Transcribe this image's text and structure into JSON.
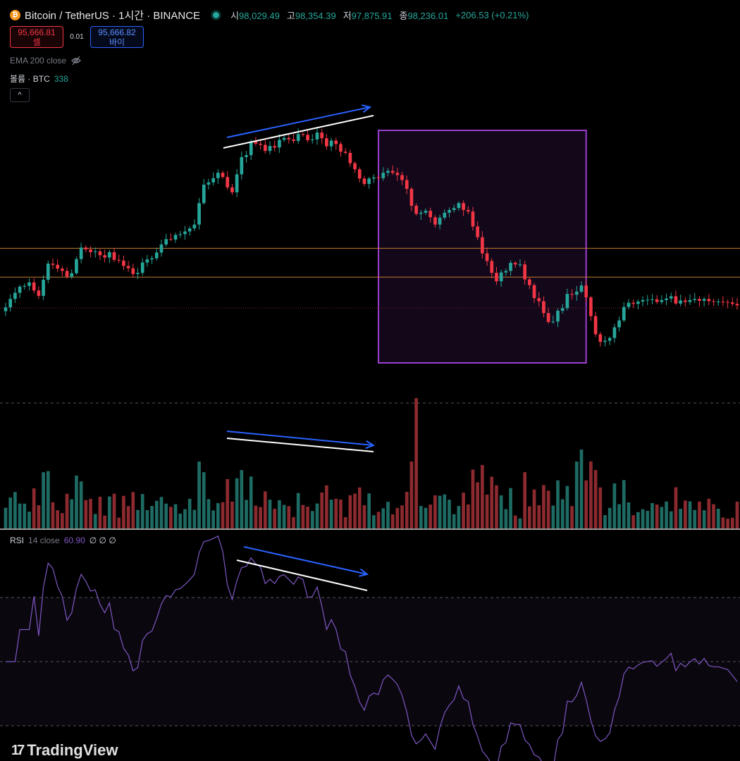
{
  "header": {
    "coin_glyph": "₿",
    "symbol": "Bitcoin / TetherUS · 1시간 · BINANCE",
    "ohlc": [
      {
        "k": "시",
        "v": "98,029.49"
      },
      {
        "k": "고",
        "v": "98,354.39"
      },
      {
        "k": "저",
        "v": "97,875.91"
      },
      {
        "k": "종",
        "v": "98,236.01"
      }
    ],
    "change": "+206.53 (+0.21%)"
  },
  "trade": {
    "sell_price": "95,666.81",
    "sell_label": "셀",
    "spread": "0.01",
    "buy_price": "95,666.82",
    "buy_label": "바이"
  },
  "indicators": {
    "ema_label": "EMA 200 close",
    "ema_icon": "eye-off-icon",
    "volume_label": "볼륨 · BTC",
    "volume_value": "338",
    "collapse_glyph": "^"
  },
  "rsi": {
    "label": "RSI",
    "params": "14 close",
    "value": "60.90",
    "extra": "∅ ∅ ∅"
  },
  "brand": "TradingView",
  "colors": {
    "up": "#26a69a",
    "down": "#f23645",
    "rsi_line": "#7e57c2",
    "box_border": "#9c3fd0",
    "level": "#c77b30",
    "arrow": "#2962ff"
  },
  "chart_data": {
    "type": "candlestick",
    "candles_close": [
      95340,
      95560,
      95720,
      95880,
      95900,
      95990,
      95780,
      95640,
      96060,
      96480,
      96450,
      96350,
      96290,
      96140,
      96230,
      96600,
      96900,
      96850,
      96780,
      96800,
      96700,
      96640,
      96780,
      96580,
      96560,
      96420,
      96360,
      96210,
      96240,
      96510,
      96590,
      96620,
      96770,
      96980,
      97120,
      97110,
      97230,
      97250,
      97320,
      97400,
      97500,
      98060,
      98540,
      98600,
      98710,
      98850,
      98740,
      98470,
      98340,
      98810,
      99260,
      99310,
      99670,
      99610,
      99580,
      99420,
      99550,
      99510,
      99710,
      99760,
      99720,
      99680,
      99860,
      99840,
      99700,
      99720,
      99900,
      99750,
      99540,
      99690,
      99600,
      99400,
      99370,
      99100,
      98940,
      98700,
      98560,
      98700,
      98730,
      98710,
      98850,
      98900,
      98850,
      98790,
      98660,
      98430,
      97990,
      97780,
      97810,
      97860,
      97690,
      97500,
      97680,
      97810,
      97880,
      97930,
      98060,
      97880,
      97840,
      97450,
      97170,
      96750,
      96550,
      96240,
      96020,
      96250,
      96290,
      96500,
      96460,
      96460,
      96070,
      95920,
      95580,
      95500,
      95190,
      94960,
      94970,
      95250,
      95320,
      95690,
      95670,
      95750,
      95910,
      95600,
      95110,
      94640,
      94440,
      94470,
      94540,
      94820,
      95000,
      95350,
      95460,
      95430,
      95490,
      95530,
      95540,
      95550,
      95480,
      95530,
      95570,
      95630,
      95440,
      95520,
      95480,
      95530,
      95560,
      95510,
      95560,
      95500,
      95490,
      95490,
      95480,
      95470,
      95430,
      95390
    ],
    "levels": [
      96880,
      96130
    ],
    "rsi_levels": [
      70,
      50,
      30
    ],
    "annotations": [
      "price higher-high",
      "volume lower-high",
      "rsi lower-high",
      "box highlighted drop"
    ]
  }
}
